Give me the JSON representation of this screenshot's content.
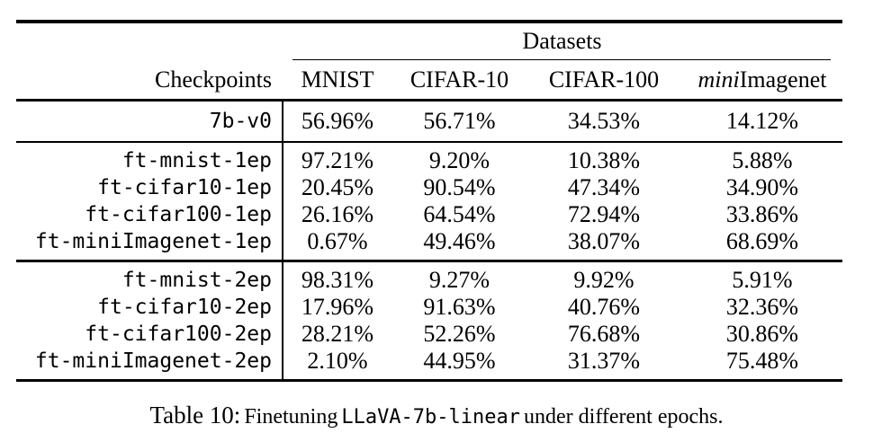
{
  "table": {
    "datasets_header": "Datasets",
    "checkpoints_header": "Checkpoints",
    "columns": [
      "MNIST",
      "CIFAR-10",
      "CIFAR-100"
    ],
    "column4": {
      "italic": "mini",
      "rest": "Imagenet"
    },
    "base_block": [
      {
        "name": "7b-v0",
        "values": [
          "56.96%",
          "56.71%",
          "34.53%",
          "14.12%"
        ]
      }
    ],
    "epoch1_block": [
      {
        "name": "ft-mnist-1ep",
        "values": [
          "97.21%",
          "9.20%",
          "10.38%",
          "5.88%"
        ]
      },
      {
        "name": "ft-cifar10-1ep",
        "values": [
          "20.45%",
          "90.54%",
          "47.34%",
          "34.90%"
        ]
      },
      {
        "name": "ft-cifar100-1ep",
        "values": [
          "26.16%",
          "64.54%",
          "72.94%",
          "33.86%"
        ]
      },
      {
        "name": "ft-miniImagenet-1ep",
        "values": [
          "0.67%",
          "49.46%",
          "38.07%",
          "68.69%"
        ]
      }
    ],
    "epoch2_block": [
      {
        "name": "ft-mnist-2ep",
        "values": [
          "98.31%",
          "9.27%",
          "9.92%",
          "5.91%"
        ]
      },
      {
        "name": "ft-cifar10-2ep",
        "values": [
          "17.96%",
          "91.63%",
          "40.76%",
          "32.36%"
        ]
      },
      {
        "name": "ft-cifar100-2ep",
        "values": [
          "28.21%",
          "52.26%",
          "76.68%",
          "30.86%"
        ]
      },
      {
        "name": "ft-miniImagenet-2ep",
        "values": [
          "2.10%",
          "44.95%",
          "31.37%",
          "75.48%"
        ]
      }
    ]
  },
  "caption": {
    "label": "Table 10:",
    "before_code": "Finetuning",
    "code": "LLaVA-7b-linear",
    "after_code": "under different epochs."
  }
}
